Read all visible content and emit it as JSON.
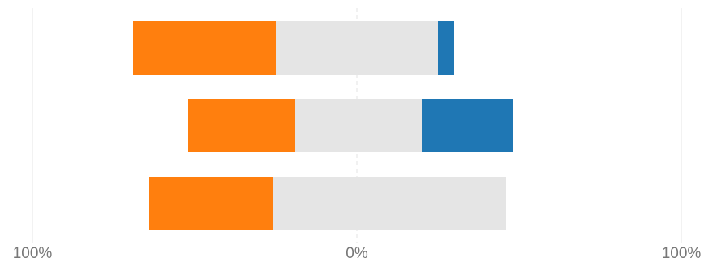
{
  "chart_data": {
    "type": "bar",
    "orientation": "horizontal",
    "stacked": "diverging",
    "categories": [
      "",
      "",
      ""
    ],
    "series": [
      {
        "color": "#ff7f0e",
        "values": [
          44,
          33,
          38
        ]
      },
      {
        "color": "#e5e5e5",
        "values": [
          50,
          39,
          72
        ]
      },
      {
        "color": "#1f77b4",
        "values": [
          5,
          28,
          0
        ]
      }
    ],
    "baseline_offsets": [
      -69,
      -52,
      -64
    ],
    "xlim": [
      -100,
      100
    ],
    "x_ticks": [
      {
        "value": -100,
        "label": "100%"
      },
      {
        "value": 0,
        "label": "0%"
      },
      {
        "value": 100,
        "label": "100%"
      }
    ],
    "title": "",
    "xlabel": "",
    "ylabel": "",
    "grid": true,
    "legend": "none"
  }
}
